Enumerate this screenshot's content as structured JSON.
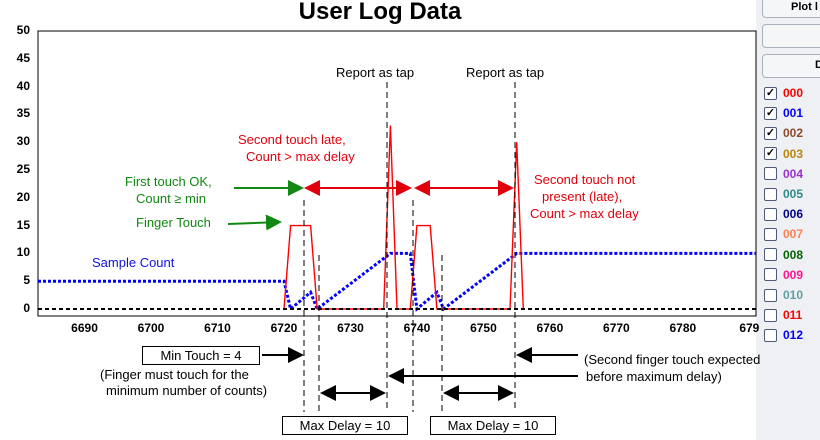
{
  "title": "User Log Data",
  "side_buttons": [
    "Plot l",
    "",
    "D"
  ],
  "legend": [
    {
      "label": "000",
      "color": "#ff0000",
      "checked": true
    },
    {
      "label": "001",
      "color": "#0000ff",
      "checked": true
    },
    {
      "label": "002",
      "color": "#8b4a2b",
      "checked": true
    },
    {
      "label": "003",
      "color": "#b8860b",
      "checked": true
    },
    {
      "label": "004",
      "color": "#9932cc",
      "checked": false
    },
    {
      "label": "005",
      "color": "#2e8b8b",
      "checked": false
    },
    {
      "label": "006",
      "color": "#00008b",
      "checked": false
    },
    {
      "label": "007",
      "color": "#ff7f50",
      "checked": false
    },
    {
      "label": "008",
      "color": "#006400",
      "checked": false
    },
    {
      "label": "009",
      "color": "#ff1493",
      "checked": false
    },
    {
      "label": "010",
      "color": "#5f9ea0",
      "checked": false
    },
    {
      "label": "011",
      "color": "#ff0000",
      "checked": false
    },
    {
      "label": "012",
      "color": "#0000ff",
      "checked": false
    }
  ],
  "chart_data": {
    "type": "line",
    "title": "User Log Data",
    "xlim": [
      6683,
      6791
    ],
    "ylim": [
      0,
      50
    ],
    "x_ticks": [
      6690,
      6700,
      6710,
      6720,
      6730,
      6740,
      6750,
      6760,
      6770,
      6780,
      "679"
    ],
    "y_ticks": [
      0,
      5,
      10,
      15,
      20,
      25,
      30,
      35,
      40,
      45,
      50
    ],
    "grid": false,
    "series": [
      {
        "name": "Sample Count",
        "color": "#0000ff",
        "x": [
          6683,
          6720,
          6721,
          6723,
          6724,
          6725,
          6736,
          6739,
          6740,
          6742,
          6743,
          6744,
          6755,
          6791
        ],
        "y": [
          5,
          5,
          0,
          2,
          3,
          0,
          10,
          10,
          0,
          2,
          3,
          0,
          10,
          10
        ]
      },
      {
        "name": "",
        "color": "#ff0000",
        "x": [
          6720,
          6721,
          6724,
          6725,
          6735,
          6736,
          6737,
          6739,
          6740,
          6742,
          6743,
          6744,
          6754,
          6755,
          6756
        ],
        "y": [
          0,
          15,
          15,
          0,
          0,
          33,
          0,
          0,
          15,
          15,
          0,
          0,
          0,
          30,
          0
        ]
      },
      {
        "name": "",
        "color": "#000000",
        "x": [
          6683,
          6791
        ],
        "y": [
          0,
          0
        ]
      }
    ]
  },
  "annotations": {
    "report_tap_1": "Report as tap",
    "report_tap_2": "Report as tap",
    "second_late_1": "Second touch late,",
    "second_late_2": "Count > max delay",
    "first_ok_1": "First touch OK,",
    "first_ok_2": "Count ≥ min",
    "finger_touch": "Finger Touch",
    "sample_count": "Sample Count",
    "not_present_1": "Second touch not",
    "not_present_2": "present (late),",
    "not_present_3": "Count > max delay",
    "min_touch": "Min Touch = 4",
    "min_touch_note_1": "(Finger must touch for the",
    "min_touch_note_2": "minimum number of counts)",
    "expected_1": "(Second finger touch expected",
    "expected_2": "before maximum delay)",
    "max_delay_1": "Max Delay = 10",
    "max_delay_2": "Max Delay = 10"
  }
}
